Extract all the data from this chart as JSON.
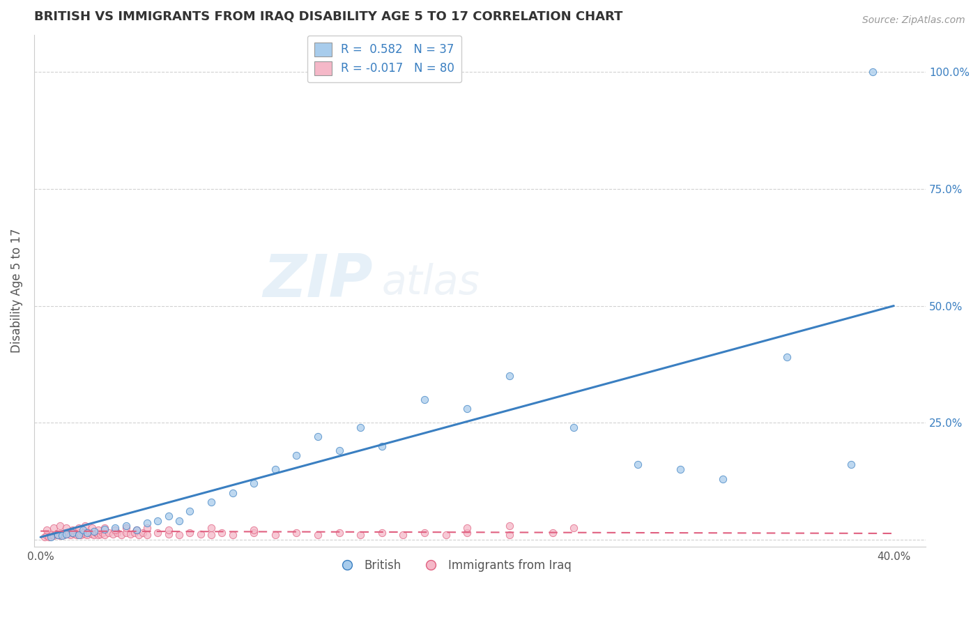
{
  "title": "BRITISH VS IMMIGRANTS FROM IRAQ DISABILITY AGE 5 TO 17 CORRELATION CHART",
  "source": "Source: ZipAtlas.com",
  "ylabel": "Disability Age 5 to 17",
  "xlim": [
    -0.003,
    0.415
  ],
  "ylim": [
    -0.015,
    1.08
  ],
  "british_color": "#A8CCEC",
  "iraq_color": "#F5B8C8",
  "british_line_color": "#3A7FC1",
  "iraq_line_color": "#E06080",
  "legend_british_r": "R =  0.582",
  "legend_british_n": "N = 37",
  "legend_iraq_r": "R = -0.017",
  "legend_iraq_n": "N = 80",
  "legend_label_british": "British",
  "legend_label_iraq": "Immigrants from Iraq",
  "british_x": [
    0.005,
    0.008,
    0.01,
    0.012,
    0.015,
    0.018,
    0.02,
    0.022,
    0.025,
    0.03,
    0.035,
    0.04,
    0.045,
    0.05,
    0.055,
    0.06,
    0.065,
    0.07,
    0.08,
    0.09,
    0.1,
    0.11,
    0.12,
    0.13,
    0.14,
    0.15,
    0.16,
    0.18,
    0.2,
    0.22,
    0.25,
    0.28,
    0.3,
    0.32,
    0.35,
    0.38,
    0.39
  ],
  "british_y": [
    0.005,
    0.01,
    0.008,
    0.012,
    0.015,
    0.01,
    0.02,
    0.015,
    0.018,
    0.022,
    0.025,
    0.03,
    0.02,
    0.035,
    0.04,
    0.05,
    0.04,
    0.06,
    0.08,
    0.1,
    0.12,
    0.15,
    0.18,
    0.22,
    0.19,
    0.24,
    0.2,
    0.3,
    0.28,
    0.35,
    0.24,
    0.16,
    0.15,
    0.13,
    0.39,
    0.16,
    1.0
  ],
  "iraq_x": [
    0.002,
    0.003,
    0.004,
    0.005,
    0.006,
    0.007,
    0.008,
    0.009,
    0.01,
    0.011,
    0.012,
    0.013,
    0.014,
    0.015,
    0.016,
    0.017,
    0.018,
    0.019,
    0.02,
    0.021,
    0.022,
    0.023,
    0.024,
    0.025,
    0.026,
    0.027,
    0.028,
    0.029,
    0.03,
    0.032,
    0.034,
    0.036,
    0.038,
    0.04,
    0.042,
    0.044,
    0.046,
    0.048,
    0.05,
    0.055,
    0.06,
    0.065,
    0.07,
    0.075,
    0.08,
    0.085,
    0.09,
    0.1,
    0.11,
    0.12,
    0.13,
    0.14,
    0.15,
    0.16,
    0.17,
    0.18,
    0.19,
    0.2,
    0.22,
    0.24,
    0.003,
    0.006,
    0.009,
    0.012,
    0.015,
    0.018,
    0.021,
    0.024,
    0.027,
    0.03,
    0.035,
    0.04,
    0.045,
    0.05,
    0.06,
    0.08,
    0.1,
    0.2,
    0.22,
    0.25
  ],
  "iraq_y": [
    0.005,
    0.008,
    0.006,
    0.01,
    0.008,
    0.012,
    0.01,
    0.008,
    0.012,
    0.01,
    0.015,
    0.012,
    0.01,
    0.015,
    0.012,
    0.01,
    0.015,
    0.01,
    0.015,
    0.012,
    0.01,
    0.015,
    0.012,
    0.01,
    0.015,
    0.01,
    0.012,
    0.015,
    0.01,
    0.015,
    0.012,
    0.015,
    0.01,
    0.015,
    0.012,
    0.015,
    0.01,
    0.015,
    0.01,
    0.015,
    0.012,
    0.01,
    0.015,
    0.012,
    0.01,
    0.015,
    0.01,
    0.015,
    0.01,
    0.015,
    0.01,
    0.015,
    0.01,
    0.015,
    0.01,
    0.015,
    0.01,
    0.015,
    0.01,
    0.015,
    0.02,
    0.025,
    0.03,
    0.025,
    0.02,
    0.025,
    0.03,
    0.025,
    0.02,
    0.025,
    0.02,
    0.025,
    0.02,
    0.025,
    0.02,
    0.025,
    0.02,
    0.025,
    0.03,
    0.025
  ],
  "y_tick_positions": [
    0.0,
    0.25,
    0.5,
    0.75,
    1.0
  ],
  "y_tick_labels": [
    "",
    "25.0%",
    "50.0%",
    "75.0%",
    "100.0%"
  ],
  "x_tick_positions": [
    0.0,
    0.1,
    0.2,
    0.3,
    0.4
  ],
  "x_tick_labels": [
    "0.0%",
    "",
    "",
    "",
    "40.0%"
  ]
}
